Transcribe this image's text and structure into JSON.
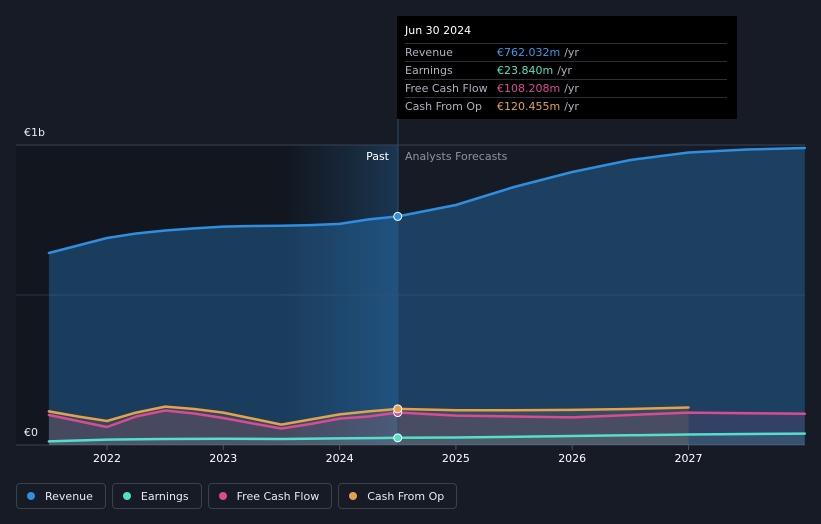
{
  "chart_data": {
    "type": "area",
    "y_axis_labels": [
      "€1b",
      "€0"
    ],
    "ylim": [
      0,
      1000
    ],
    "unit": "€m",
    "x_ticks": [
      "2022",
      "2023",
      "2024",
      "2025",
      "2026",
      "2027"
    ],
    "period_labels": {
      "past": "Past",
      "forecast": "Analysts Forecasts"
    },
    "series": [
      {
        "name": "Revenue",
        "color": "#2e8fe0",
        "x": [
          2021.5,
          2022.0,
          2022.25,
          2022.5,
          2022.75,
          2023.0,
          2023.25,
          2023.5,
          2023.75,
          2024.0,
          2024.25,
          2024.5,
          2025.0,
          2025.5,
          2026.0,
          2026.5,
          2027.0,
          2027.5,
          2028.0
        ],
        "values": [
          640,
          690,
          705,
          715,
          722,
          728,
          730,
          731,
          733,
          737,
          752,
          762,
          800,
          860,
          910,
          950,
          975,
          985,
          990
        ]
      },
      {
        "name": "Earnings",
        "color": "#53e0c8",
        "x": [
          2021.5,
          2022.0,
          2022.5,
          2023.0,
          2023.5,
          2024.0,
          2024.5,
          2025.0,
          2026.0,
          2027.0,
          2028.0
        ],
        "values": [
          12,
          18,
          20,
          21,
          20,
          22,
          23.84,
          25,
          30,
          35,
          38
        ]
      },
      {
        "name": "Free Cash Flow",
        "color": "#d84c92",
        "x": [
          2021.5,
          2021.75,
          2022.0,
          2022.25,
          2022.5,
          2022.75,
          2023.0,
          2023.25,
          2023.5,
          2023.75,
          2024.0,
          2024.25,
          2024.5,
          2025.0,
          2025.5,
          2026.0,
          2026.5,
          2027.0,
          2027.5,
          2028.0
        ],
        "values": [
          100,
          80,
          60,
          95,
          115,
          105,
          90,
          72,
          55,
          70,
          88,
          95,
          108.208,
          98,
          95,
          92,
          100,
          108,
          106,
          104
        ]
      },
      {
        "name": "Cash From Op",
        "color": "#e3a34e",
        "x": [
          2021.5,
          2021.75,
          2022.0,
          2022.25,
          2022.5,
          2022.75,
          2023.0,
          2023.25,
          2023.5,
          2023.75,
          2024.0,
          2024.25,
          2024.5,
          2025.0,
          2025.5,
          2026.0,
          2026.5,
          2027.0
        ],
        "values": [
          112,
          95,
          80,
          108,
          128,
          120,
          108,
          88,
          68,
          85,
          102,
          112,
          120.455,
          116,
          116,
          117,
          120,
          125
        ]
      }
    ],
    "tooltip": {
      "date": "Jun 30 2024",
      "rows": [
        {
          "label": "Revenue",
          "value": "€762.032m",
          "unit": "/yr",
          "color": "#3b9be8"
        },
        {
          "label": "Earnings",
          "value": "€23.840m",
          "unit": "/yr",
          "color": "#53e0c8"
        },
        {
          "label": "Free Cash Flow",
          "value": "€108.208m",
          "unit": "/yr",
          "color": "#d84c92"
        },
        {
          "label": "Cash From Op",
          "value": "€120.455m",
          "unit": "/yr",
          "color": "#e3a34e"
        }
      ]
    },
    "legend": [
      {
        "label": "Revenue",
        "color": "#2e8fe0"
      },
      {
        "label": "Earnings",
        "color": "#53e0c8"
      },
      {
        "label": "Free Cash Flow",
        "color": "#d84c92"
      },
      {
        "label": "Cash From Op",
        "color": "#e3a34e"
      }
    ],
    "legend_position": "bottom-left"
  }
}
